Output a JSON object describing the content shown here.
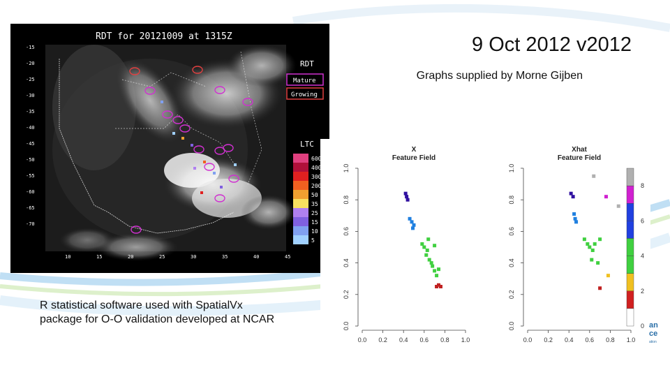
{
  "slide": {
    "title": "9 Oct 2012 v2012",
    "subtitle": "Graphs supplied by Morne Gijben",
    "caption_line1": "R statistical software  used with SpatialVx",
    "caption_line2": "package for O-O validation developed at NCAR",
    "logo_line1": "an",
    "logo_line2": "ce",
    "logo_tag": "ation"
  },
  "satellite": {
    "title": "RDT  for  20121009  at   1315Z",
    "legend_rdt_title": "RDT",
    "legend_mature": "Mature",
    "legend_growing": "Growing",
    "legend_ltc_title": "LTC",
    "ltc_levels": [
      "600",
      "400",
      "300",
      "200",
      "50",
      "35",
      "25",
      "15",
      "10",
      "5"
    ],
    "ltc_colors": [
      "#e0407f",
      "#b0103a",
      "#e02020",
      "#f06020",
      "#f0a030",
      "#f8e060",
      "#b080f0",
      "#8060e0",
      "#80a0f0",
      "#a0d0ff"
    ],
    "lat_labels": [
      "-15",
      "-20",
      "-25",
      "-30",
      "-35",
      "-40",
      "-45",
      "-50",
      "-55",
      "-60",
      "-65",
      "-70"
    ],
    "lon_labels": [
      "10",
      "15",
      "20",
      "25",
      "30",
      "35",
      "40",
      "45"
    ],
    "mature_color": "#d030d0",
    "growing_color": "#e04040"
  },
  "chart_data": [
    {
      "type": "scatter",
      "title": "X",
      "subtitle": "Feature Field",
      "xlim": [
        0.0,
        1.0
      ],
      "ylim": [
        0.0,
        1.0
      ],
      "x_ticks": [
        "0.0",
        "0.2",
        "0.4",
        "0.6",
        "0.8",
        "1.0"
      ],
      "y_ticks": [
        "0.0",
        "0.2",
        "0.4",
        "0.6",
        "0.8",
        "1.0"
      ],
      "features": [
        {
          "color": "#3010a0",
          "points": [
            [
              0.42,
              0.84
            ],
            [
              0.43,
              0.82
            ],
            [
              0.44,
              0.8
            ]
          ]
        },
        {
          "color": "#2080e0",
          "points": [
            [
              0.46,
              0.68
            ],
            [
              0.48,
              0.66
            ],
            [
              0.5,
              0.64
            ],
            [
              0.49,
              0.62
            ]
          ]
        },
        {
          "color": "#40d040",
          "points": [
            [
              0.58,
              0.52
            ],
            [
              0.6,
              0.5
            ],
            [
              0.63,
              0.48
            ],
            [
              0.62,
              0.45
            ],
            [
              0.65,
              0.42
            ],
            [
              0.68,
              0.38
            ],
            [
              0.7,
              0.35
            ],
            [
              0.67,
              0.4
            ],
            [
              0.72,
              0.32
            ],
            [
              0.74,
              0.36
            ],
            [
              0.64,
              0.55
            ],
            [
              0.7,
              0.51
            ]
          ]
        },
        {
          "color": "#c02020",
          "points": [
            [
              0.72,
              0.25
            ],
            [
              0.74,
              0.26
            ],
            [
              0.76,
              0.25
            ]
          ]
        }
      ]
    },
    {
      "type": "scatter",
      "title": "Xhat",
      "subtitle": "Feature Field",
      "xlim": [
        0.0,
        1.0
      ],
      "ylim": [
        0.0,
        1.0
      ],
      "x_ticks": [
        "0.0",
        "0.2",
        "0.4",
        "0.6",
        "0.8",
        "1.0"
      ],
      "y_ticks": [
        "0.0",
        "0.2",
        "0.4",
        "0.6",
        "0.8",
        "1.0"
      ],
      "colorbar": {
        "ticks": [
          "0",
          "2",
          "4",
          "6",
          "8"
        ],
        "colors": [
          "#ffffff",
          "#d02020",
          "#f0c020",
          "#40d040",
          "#40d040",
          "#2040e0",
          "#2040e0",
          "#d020d0",
          "#b0b0b0"
        ]
      },
      "features": [
        {
          "color": "#b0b0b0",
          "points": [
            [
              0.64,
              0.95
            ],
            [
              0.88,
              0.76
            ]
          ]
        },
        {
          "color": "#3010a0",
          "points": [
            [
              0.42,
              0.84
            ],
            [
              0.44,
              0.82
            ]
          ]
        },
        {
          "color": "#d020d0",
          "points": [
            [
              0.76,
              0.82
            ]
          ]
        },
        {
          "color": "#2080e0",
          "points": [
            [
              0.45,
              0.71
            ],
            [
              0.46,
              0.68
            ],
            [
              0.47,
              0.66
            ]
          ]
        },
        {
          "color": "#40d040",
          "points": [
            [
              0.55,
              0.55
            ],
            [
              0.58,
              0.52
            ],
            [
              0.6,
              0.5
            ],
            [
              0.63,
              0.48
            ],
            [
              0.65,
              0.52
            ],
            [
              0.7,
              0.55
            ],
            [
              0.62,
              0.42
            ],
            [
              0.68,
              0.4
            ]
          ]
        },
        {
          "color": "#f0c020",
          "points": [
            [
              0.78,
              0.32
            ]
          ]
        },
        {
          "color": "#c02020",
          "points": [
            [
              0.7,
              0.24
            ]
          ]
        }
      ]
    }
  ]
}
